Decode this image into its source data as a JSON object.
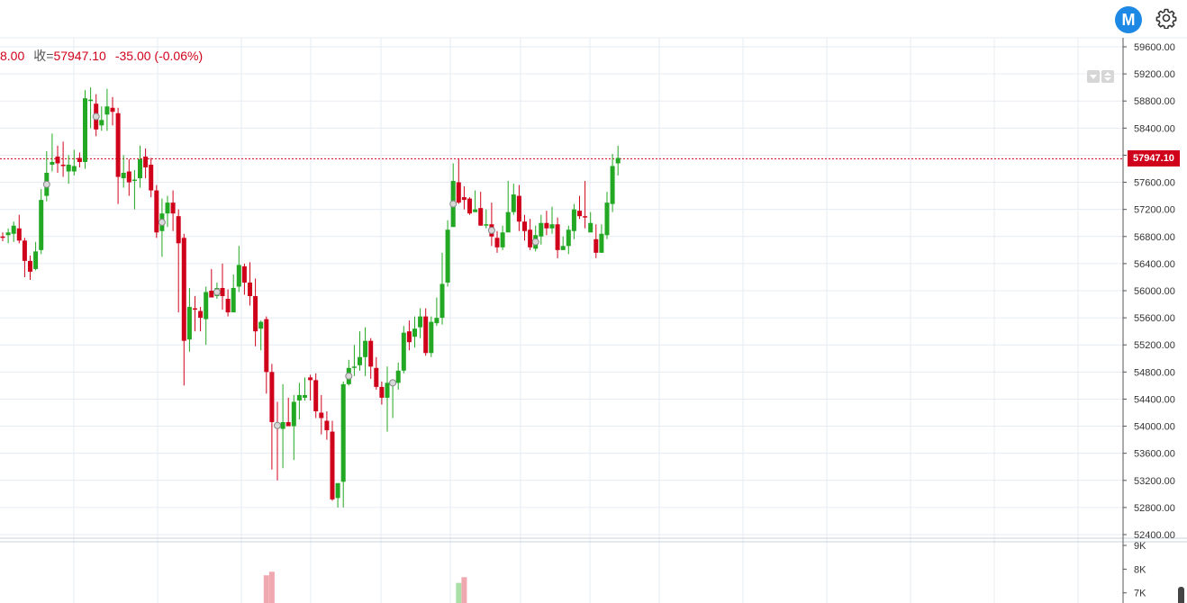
{
  "header": {
    "truncated_value": "8.00",
    "close_label": "收=",
    "close_value": "57947.10",
    "change": "-35.00 (-0.06%)"
  },
  "logo_letter": "M",
  "icons": {
    "logo": "m-logo-icon",
    "settings": "gear-icon",
    "scroll_down": "triangle-down-icon",
    "scroll_updown": "up-down-arrows-icon"
  },
  "colors": {
    "up": "#22a822",
    "down": "#d0021b",
    "grid": "#e6ecf2",
    "axis_text": "#333333",
    "price_line": "#d0021b"
  },
  "chart_data": {
    "type": "candlestick",
    "last_price": 57947.1,
    "price_label": "57947.10",
    "ylim": [
      52400,
      59600
    ],
    "yticks": [
      "59600.00",
      "59200.00",
      "58800.00",
      "58400.00",
      "58000.00",
      "57600.00",
      "57200.00",
      "56800.00",
      "56400.00",
      "56000.00",
      "55600.00",
      "55200.00",
      "54800.00",
      "54400.00",
      "54000.00",
      "53600.00",
      "53200.00",
      "52800.00",
      "52400.00"
    ],
    "volume_ticks": [
      "9K",
      "8K",
      "7K"
    ],
    "volume_ylim": [
      6800,
      9000
    ],
    "candles": [
      [
        56800,
        56780,
        56860,
        56730
      ],
      [
        56820,
        56860,
        56920,
        56700
      ],
      [
        56840,
        56960,
        57020,
        56720
      ],
      [
        56920,
        56740,
        57120,
        56700
      ],
      [
        56740,
        56440,
        56780,
        56200
      ],
      [
        56440,
        56280,
        56520,
        56160
      ],
      [
        56320,
        56580,
        56720,
        56300
      ],
      [
        56600,
        57340,
        57500,
        56540
      ],
      [
        57400,
        57740,
        58060,
        57320
      ],
      [
        57860,
        57900,
        58320,
        57760
      ],
      [
        57980,
        57880,
        58140,
        57740
      ],
      [
        57860,
        57840,
        58200,
        57680
      ],
      [
        57760,
        57860,
        58000,
        57580
      ],
      [
        57760,
        57840,
        58080,
        57700
      ],
      [
        57960,
        57900,
        58040,
        57820
      ],
      [
        57900,
        58840,
        58960,
        57800
      ],
      [
        58800,
        58820,
        59000,
        58400
      ],
      [
        58760,
        58380,
        58900,
        58280
      ],
      [
        58440,
        58520,
        58720,
        58360
      ],
      [
        58600,
        58720,
        58980,
        58360
      ],
      [
        58700,
        58640,
        58860,
        58440
      ],
      [
        58620,
        57680,
        58700,
        57280
      ],
      [
        57660,
        57740,
        58000,
        57520
      ],
      [
        57760,
        57600,
        57940,
        57400
      ],
      [
        57620,
        57640,
        57780,
        57200
      ],
      [
        57660,
        57940,
        58140,
        57520
      ],
      [
        57980,
        57820,
        58100,
        57660
      ],
      [
        57860,
        57480,
        57960,
        57380
      ],
      [
        57480,
        56860,
        57560,
        56780
      ],
      [
        56880,
        57140,
        57360,
        56500
      ],
      [
        57140,
        57300,
        57400,
        56940
      ],
      [
        57300,
        57140,
        57480,
        56880
      ],
      [
        57100,
        56700,
        57200,
        55680
      ],
      [
        56780,
        55260,
        56840,
        54600
      ],
      [
        55280,
        55760,
        56040,
        55100
      ],
      [
        55740,
        55720,
        55920,
        55400
      ],
      [
        55700,
        55600,
        55760,
        55400
      ],
      [
        55580,
        55980,
        56060,
        55200
      ],
      [
        56000,
        55900,
        56320,
        55900
      ],
      [
        55920,
        56040,
        56120,
        55880
      ],
      [
        56040,
        55920,
        56400,
        55720
      ],
      [
        55880,
        55680,
        56020,
        55620
      ],
      [
        55680,
        56040,
        56240,
        55740
      ],
      [
        56060,
        56380,
        56660,
        55980
      ],
      [
        56360,
        56120,
        56400,
        55940
      ],
      [
        56120,
        55920,
        56420,
        55780
      ],
      [
        55920,
        55400,
        56180,
        55180
      ],
      [
        55440,
        55540,
        55560,
        55120
      ],
      [
        55580,
        54800,
        55620,
        54480
      ],
      [
        54800,
        54060,
        54920,
        53360
      ],
      [
        54040,
        53980,
        54360,
        53200
      ],
      [
        53960,
        54060,
        54620,
        53380
      ],
      [
        54060,
        54000,
        54420,
        54040
      ],
      [
        54000,
        54360,
        54460,
        53500
      ],
      [
        54380,
        54460,
        54640,
        54100
      ],
      [
        54420,
        54460,
        54720,
        54380
      ],
      [
        54720,
        54680,
        54760,
        54380
      ],
      [
        54680,
        54220,
        54780,
        54120
      ],
      [
        54200,
        54120,
        54460,
        53880
      ],
      [
        54080,
        53940,
        54220,
        53800
      ],
      [
        53920,
        52920,
        54080,
        52900
      ],
      [
        52940,
        53160,
        53160,
        52800
      ],
      [
        53180,
        54620,
        54660,
        52800
      ],
      [
        54620,
        54860,
        54980,
        54600
      ],
      [
        54860,
        54880,
        55200,
        54740
      ],
      [
        54900,
        55020,
        55400,
        54820
      ],
      [
        55020,
        55260,
        55460,
        54740
      ],
      [
        55260,
        54880,
        55300,
        54700
      ],
      [
        54860,
        54580,
        55020,
        54540
      ],
      [
        54580,
        54420,
        54660,
        54320
      ],
      [
        54420,
        54640,
        54880,
        53920
      ],
      [
        54640,
        54640,
        54680,
        54120
      ],
      [
        54640,
        54820,
        54940,
        54540
      ],
      [
        54820,
        55380,
        55480,
        54780
      ],
      [
        55400,
        55240,
        55560,
        55120
      ],
      [
        55320,
        55440,
        55620,
        55160
      ],
      [
        55460,
        55620,
        55740,
        55300
      ],
      [
        55620,
        55080,
        55740,
        55040
      ],
      [
        55080,
        55540,
        55620,
        55020
      ],
      [
        55520,
        55600,
        55900,
        55480
      ],
      [
        55600,
        56100,
        56560,
        55500
      ],
      [
        56120,
        56900,
        57040,
        56060
      ],
      [
        56940,
        57620,
        57880,
        56980
      ],
      [
        57600,
        57300,
        57940,
        57280
      ],
      [
        57380,
        57340,
        57540,
        57200
      ],
      [
        57360,
        57140,
        57380,
        57120
      ],
      [
        57160,
        57200,
        57480,
        57160
      ],
      [
        57220,
        56960,
        57460,
        56960
      ],
      [
        56960,
        56980,
        57200,
        56920
      ],
      [
        56980,
        56800,
        57300,
        56660
      ],
      [
        56780,
        56640,
        56880,
        56560
      ],
      [
        56640,
        56860,
        56960,
        56600
      ],
      [
        56860,
        57160,
        57620,
        56900
      ],
      [
        57160,
        57420,
        57580,
        57120
      ],
      [
        57400,
        57020,
        57560,
        56880
      ],
      [
        57020,
        56880,
        57120,
        56740
      ],
      [
        56900,
        56640,
        57060,
        56600
      ],
      [
        56620,
        56820,
        56960,
        56580
      ],
      [
        56800,
        57000,
        57120,
        56680
      ],
      [
        57000,
        56920,
        57180,
        56820
      ],
      [
        56920,
        56980,
        57240,
        56840
      ],
      [
        56980,
        56600,
        57080,
        56480
      ],
      [
        56600,
        56660,
        56800,
        56600
      ],
      [
        56660,
        56900,
        56960,
        56540
      ],
      [
        56880,
        57200,
        57280,
        56760
      ],
      [
        57180,
        57100,
        57400,
        57060
      ],
      [
        57100,
        57080,
        57620,
        56920
      ],
      [
        56860,
        57000,
        57160,
        56940
      ],
      [
        56760,
        56560,
        56980,
        56480
      ],
      [
        56560,
        56840,
        56980,
        56560
      ],
      [
        56820,
        57300,
        57460,
        56760
      ],
      [
        57280,
        57840,
        58020,
        57160
      ],
      [
        57880,
        57960,
        58140,
        57700
      ]
    ],
    "volumes": [
      {
        "index": 48,
        "value": 7740,
        "dir": "down"
      },
      {
        "index": 49,
        "value": 7890,
        "dir": "down"
      },
      {
        "index": 83,
        "value": 7420,
        "dir": "up"
      },
      {
        "index": 84,
        "value": 7660,
        "dir": "down"
      }
    ],
    "markers": [
      8,
      17,
      29,
      39,
      50,
      63,
      71,
      82,
      89,
      97
    ]
  }
}
